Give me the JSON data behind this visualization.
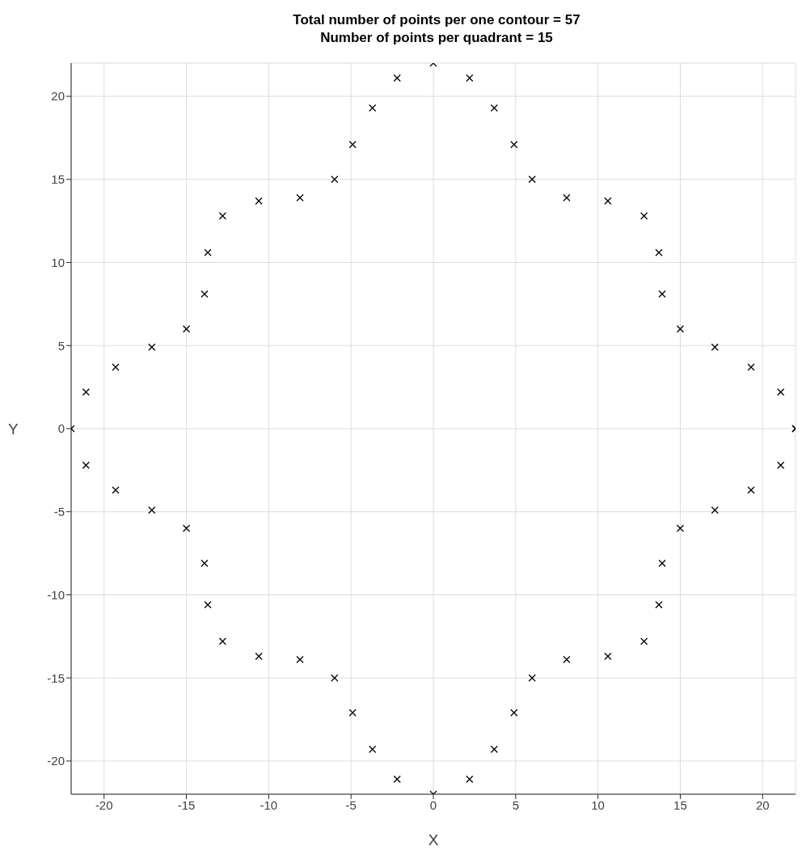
{
  "chart_data": {
    "type": "scatter",
    "title": "Total number of points per one contour = 57",
    "subtitle": "Number of points per quadrant = 15",
    "xlabel": "X",
    "ylabel": "Y",
    "x": [
      22,
      21.1,
      19.3,
      17.1,
      15,
      13.9,
      13.7,
      12.8,
      10.6,
      8.1,
      6,
      4.9,
      3.7,
      2.2,
      0,
      -2.2,
      -3.7,
      -4.9,
      -6,
      -8.1,
      -10.6,
      -12.8,
      -13.7,
      -13.9,
      -15,
      -17.1,
      -19.3,
      -21.1,
      -22,
      -21.1,
      -19.3,
      -17.1,
      -15,
      -13.9,
      -13.7,
      -12.8,
      -10.6,
      -8.1,
      -6,
      -4.9,
      -3.7,
      -2.2,
      0,
      2.2,
      3.7,
      4.9,
      6,
      8.1,
      10.6,
      12.8,
      13.7,
      13.9,
      15,
      17.1,
      19.3,
      21.1,
      22
    ],
    "values": [
      0,
      2.2,
      3.7,
      4.9,
      6,
      8.1,
      10.6,
      12.8,
      13.7,
      13.9,
      15,
      17.1,
      19.3,
      21.1,
      22,
      21.1,
      19.3,
      17.1,
      15,
      13.9,
      13.7,
      12.8,
      10.6,
      8.1,
      6,
      4.9,
      3.7,
      2.2,
      0,
      -2.2,
      -3.7,
      -4.9,
      -6,
      -8.1,
      -10.6,
      -12.8,
      -13.7,
      -13.9,
      -15,
      -17.1,
      -19.3,
      -21.1,
      -22,
      -21.1,
      -19.3,
      -17.1,
      -15,
      -13.9,
      -13.7,
      -12.8,
      -10.6,
      -8.1,
      -6,
      -4.9,
      -3.7,
      -2.2,
      0
    ],
    "color": "#000000",
    "marker": "cross",
    "grid": true,
    "xlim": [
      -22,
      22
    ],
    "ylim": [
      -22,
      22
    ],
    "xticks": [
      -20,
      -15,
      -10,
      -5,
      0,
      5,
      10,
      15,
      20
    ],
    "yticks": [
      -20,
      -15,
      -10,
      -5,
      0,
      5,
      10,
      15,
      20
    ]
  }
}
